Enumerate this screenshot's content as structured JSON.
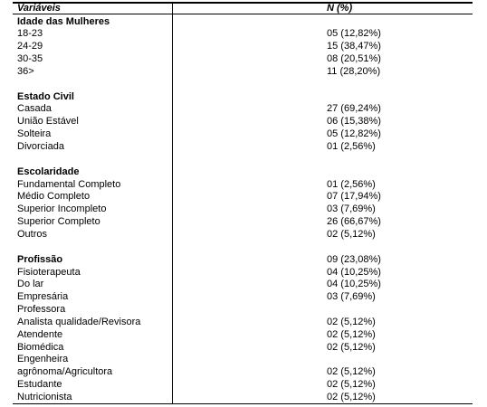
{
  "table": {
    "header": [
      "Variáveis",
      "N (%)"
    ],
    "groups": [
      {
        "title": "Idade das Mulheres",
        "rows": [
          {
            "label": "18-23",
            "value": "05 (12,82%)"
          },
          {
            "label": "24-29",
            "value": "15 (38,47%)"
          },
          {
            "label": "30-35",
            "value": "08 (20,51%)"
          },
          {
            "label": "36>",
            "value": "11 (28,20%)"
          }
        ]
      },
      {
        "title": "Estado Civil",
        "rows": [
          {
            "label": "Casada",
            "value": "27 (69,24%)"
          },
          {
            "label": "União Estável",
            "value": "06 (15,38%)"
          },
          {
            "label": "Solteira",
            "value": "05 (12,82%)"
          },
          {
            "label": "Divorciada",
            "value": "01 (2,56%)"
          }
        ]
      },
      {
        "title": "Escolaridade",
        "rows": [
          {
            "label": "Fundamental Completo",
            "value": "01 (2,56%)"
          },
          {
            "label": "Médio Completo",
            "value": "07 (17,94%)"
          },
          {
            "label": "Superior Incompleto",
            "value": "03 (7,69%)"
          },
          {
            "label": "Superior Completo",
            "value": "26 (66,67%)"
          },
          {
            "label": "Outros",
            "value": "02 (5,12%)"
          }
        ]
      },
      {
        "title": "Profissão",
        "value": "09 (23,08%)",
        "rows": [
          {
            "label": "Fisioterapeuta",
            "value": "04 (10,25%)"
          },
          {
            "label": "Do lar",
            "value": "04 (10,25%)"
          },
          {
            "label": "Empresária",
            "value": "03 (7,69%)"
          },
          {
            "label": "Professora"
          },
          {
            "label": "Analista qualidade/Revisora",
            "value": "02 (5,12%)"
          },
          {
            "label": "Atendente",
            "value": "02 (5,12%)"
          },
          {
            "label": "Biomédica",
            "value": "02 (5,12%)"
          },
          {
            "label": "Engenheira"
          },
          {
            "label": "agrônoma/Agricultora",
            "value": "02 (5,12%)"
          },
          {
            "label": "Estudante",
            "value": "02 (5,12%)"
          },
          {
            "label": "Nutricionista",
            "value": "02 (5,12%)"
          }
        ]
      }
    ]
  }
}
